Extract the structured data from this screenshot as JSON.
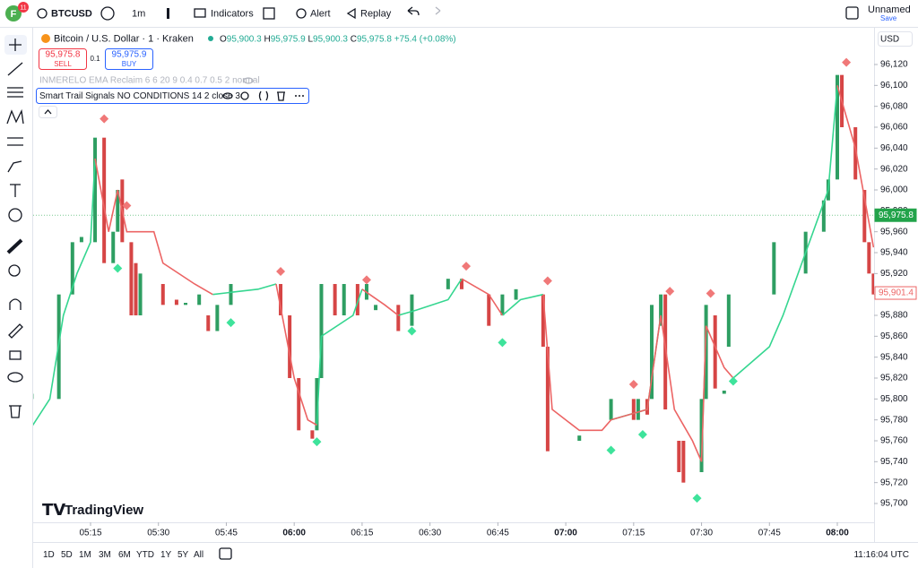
{
  "toolbar": {
    "avatar": "F",
    "badge": "11",
    "symbol": "BTCUSD",
    "interval": "1m",
    "indicators": "Indicators",
    "alert": "Alert",
    "replay": "Replay",
    "layout_name": "Unnamed",
    "save": "Save"
  },
  "legend": {
    "title": "Bitcoin / U.S. Dollar · 1 · Kraken",
    "ohlc": [
      {
        "k": "O",
        "v": "95,900.3"
      },
      {
        "k": "H",
        "v": "95,975.9"
      },
      {
        "k": "L",
        "v": "95,900.3"
      },
      {
        "k": "C",
        "v": "95,975.8"
      }
    ],
    "change": "+75.4 (+0.08%)",
    "sell_price": "95,975.8",
    "sell": "SELL",
    "qty": "0.1",
    "buy_price": "95,975.9",
    "buy": "BUY",
    "indicator1": "INMERELO EMA Reclaim 6 6 20 9 0.4 0.7 0.5 2 normal",
    "indicator2": "Smart Trail Signals NO CONDITIONS 14 2 close 3"
  },
  "currency": "USD",
  "watermark": "TradingView",
  "chart_data": {
    "type": "candlestick",
    "x": [
      "05:02",
      "05:08",
      "05:11",
      "05:13",
      "05:16",
      "05:18",
      "05:20",
      "05:21",
      "05:22",
      "05:24",
      "05:25",
      "05:26",
      "05:31",
      "05:34",
      "05:36",
      "05:39",
      "05:41",
      "05:43",
      "05:46",
      "05:57",
      "05:59",
      "06:01",
      "06:04",
      "06:05",
      "06:06",
      "06:09",
      "06:11",
      "06:14",
      "06:16",
      "06:18",
      "06:23",
      "06:26",
      "06:34",
      "06:37",
      "06:43",
      "06:46",
      "06:49",
      "06:55",
      "06:56",
      "07:03",
      "07:10",
      "07:15",
      "07:16",
      "07:18",
      "07:19",
      "07:21",
      "07:22",
      "07:25",
      "07:26",
      "07:30",
      "07:31",
      "07:33",
      "07:35",
      "07:36",
      "07:46",
      "07:53",
      "07:57",
      "07:58",
      "08:00",
      "08:01",
      "08:04",
      "08:06",
      "08:07",
      "08:08"
    ],
    "open": [
      95800,
      95800,
      95900,
      95950,
      95950,
      96050,
      95930,
      95960,
      96010,
      95950,
      95930,
      95880,
      95910,
      95895,
      95890,
      95890,
      95880,
      95865,
      95890,
      95910,
      95880,
      95820,
      95770,
      95770,
      95820,
      95910,
      95880,
      95910,
      95895,
      95885,
      95890,
      95870,
      95905,
      95915,
      95900,
      95880,
      95895,
      95900,
      95850,
      95760,
      95780,
      95800,
      95780,
      95800,
      95800,
      95870,
      95900,
      95760,
      95760,
      95730,
      95800,
      95880,
      95805,
      95850,
      95900,
      95920,
      95960,
      95990,
      96010,
      96110,
      96060,
      96000,
      95950,
      95920
    ],
    "close": [
      95805,
      95900,
      95950,
      95955,
      96050,
      95930,
      95960,
      96000,
      95950,
      95880,
      95880,
      95920,
      95890,
      95890,
      95892,
      95900,
      95865,
      95890,
      95910,
      95880,
      95820,
      95770,
      95762,
      95820,
      95910,
      95880,
      95910,
      95880,
      95910,
      95890,
      95865,
      95900,
      95915,
      95905,
      95870,
      95900,
      95905,
      95850,
      95750,
      95765,
      95800,
      95780,
      95800,
      95785,
      95890,
      95900,
      95790,
      95730,
      95720,
      95800,
      95890,
      95810,
      95808,
      95900,
      95950,
      95960,
      95990,
      96010,
      96110,
      96060,
      96010,
      95950,
      95920,
      95900
    ],
    "up_color": "#2e9e62",
    "down_color": "#d64545",
    "trail_x": [
      "05:00",
      "05:06",
      "05:09",
      "05:12",
      "05:15",
      "05:16",
      "05:19",
      "05:21",
      "05:23",
      "05:29",
      "05:31",
      "05:38",
      "05:42",
      "05:52",
      "05:56",
      "06:00",
      "06:03",
      "06:05",
      "06:06",
      "06:13",
      "06:15",
      "06:20",
      "06:23",
      "06:27",
      "06:34",
      "06:37",
      "06:43",
      "06:46",
      "06:50",
      "06:55",
      "06:57",
      "07:03",
      "07:08",
      "07:10",
      "07:18",
      "07:21",
      "07:24",
      "07:28",
      "07:30",
      "07:31",
      "07:35",
      "07:37",
      "07:45",
      "07:48",
      "07:53",
      "07:58",
      "08:00",
      "08:04",
      "08:08"
    ],
    "trail_up": [
      95760,
      95800,
      95880,
      95920,
      95950,
      96030,
      null,
      null,
      null,
      null,
      null,
      null,
      95900,
      95905,
      95910,
      null,
      null,
      95775,
      95860,
      95880,
      95905,
      null,
      95880,
      95885,
      95895,
      95915,
      null,
      95880,
      95895,
      95900,
      null,
      null,
      null,
      95780,
      95790,
      95880,
      null,
      null,
      95740,
      95870,
      null,
      95820,
      95850,
      95880,
      95940,
      96000,
      96100,
      null,
      null
    ],
    "trail_down": [
      null,
      null,
      null,
      null,
      null,
      96030,
      95960,
      96000,
      95960,
      95960,
      95930,
      95910,
      95900,
      null,
      95910,
      95820,
      95780,
      95775,
      null,
      null,
      95905,
      95890,
      95880,
      null,
      null,
      95915,
      95900,
      95880,
      null,
      95900,
      95790,
      95770,
      95770,
      95780,
      95790,
      95880,
      95790,
      95760,
      95740,
      95870,
      95830,
      95820,
      null,
      null,
      null,
      null,
      96100,
      96040,
      95945
    ],
    "trail_up_color": "#35d690",
    "trail_down_color": "#ec6464",
    "sell_x": [
      "05:18",
      "05:23",
      "05:57",
      "06:16",
      "06:38",
      "06:56",
      "07:15",
      "07:23",
      "07:32",
      "08:02"
    ],
    "sell_values": [
      96068,
      95985,
      95922,
      95914,
      95927,
      95913,
      95814,
      95903,
      95901,
      96122
    ],
    "buy_x": [
      "05:21",
      "05:46",
      "06:05",
      "06:26",
      "06:46",
      "07:10",
      "07:17",
      "07:29",
      "07:37"
    ],
    "buy_values": [
      95925,
      95873,
      95759,
      95865,
      95854,
      95751,
      95766,
      95705,
      95817
    ],
    "sell_color": "#f07878",
    "buy_color": "#3ee39b",
    "ylim": [
      95686,
      96134
    ],
    "yticks": [
      {
        "value": 95700,
        "label": "95,700"
      },
      {
        "value": 95720,
        "label": "95,720"
      },
      {
        "value": 95740,
        "label": "95,740"
      },
      {
        "value": 95760,
        "label": "95,760"
      },
      {
        "value": 95780,
        "label": "95,780"
      },
      {
        "value": 95800,
        "label": "95,800"
      },
      {
        "value": 95820,
        "label": "95,820"
      },
      {
        "value": 95840,
        "label": "95,840"
      },
      {
        "value": 95860,
        "label": "95,860"
      },
      {
        "value": 95880,
        "label": "95,880"
      },
      {
        "value": 95900,
        "label": "95,900"
      },
      {
        "value": 95920,
        "label": "95,920"
      },
      {
        "value": 95940,
        "label": "95,940"
      },
      {
        "value": 95960,
        "label": "95,960"
      },
      {
        "value": 95980,
        "label": "95,980"
      },
      {
        "value": 96000,
        "label": "96,000"
      },
      {
        "value": 96020,
        "label": "96,020"
      },
      {
        "value": 96040,
        "label": "96,040"
      },
      {
        "value": 96060,
        "label": "96,060"
      },
      {
        "value": 96080,
        "label": "96,080"
      },
      {
        "value": 96100,
        "label": "96,100"
      },
      {
        "value": 96120,
        "label": "96,120"
      }
    ],
    "xticks": [
      "05:15",
      "05:30",
      "05:45",
      "06:00",
      "06:15",
      "06:30",
      "06:45",
      "07:00",
      "07:15",
      "07:30",
      "07:45",
      "08:00"
    ],
    "price_line": {
      "value": 95975.8,
      "label": "95,975.8",
      "color": "#22a34a"
    },
    "trail_price": {
      "value": 95901.4,
      "label": "95,901.4",
      "color": "#ec6464"
    }
  },
  "bottom_bar": {
    "ranges": [
      "1D",
      "5D",
      "1M",
      "3M",
      "6M",
      "YTD",
      "1Y",
      "5Y",
      "All"
    ],
    "clock": "11:16:04 UTC"
  }
}
